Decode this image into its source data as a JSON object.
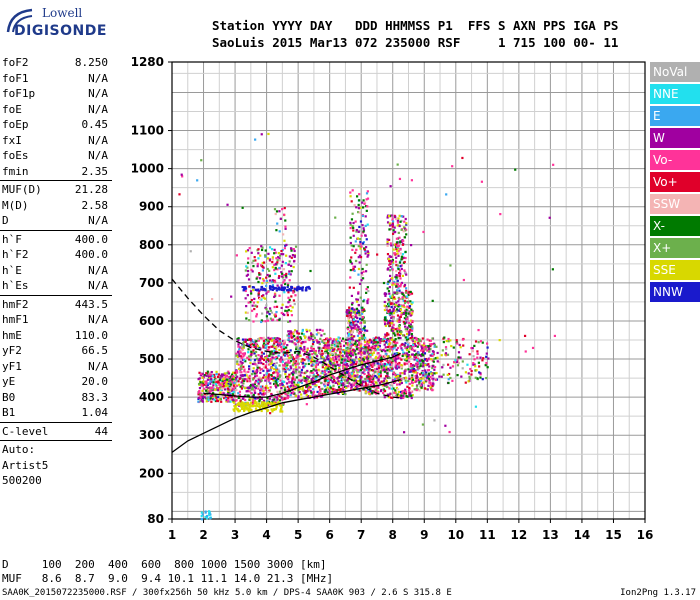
{
  "logo": {
    "line1": "Lowell",
    "line2": "DIGISONDE"
  },
  "header": {
    "line1": "Station YYYY DAY   DDD HHMMSS P1  FFS S AXN PPS IGA PS",
    "line2": "SaoLuis 2015 Mar13 072 235000 RSF     1 715 100 00- 11"
  },
  "params": {
    "group1": [
      {
        "name": "foF2",
        "value": "8.250"
      },
      {
        "name": "foF1",
        "value": "N/A"
      },
      {
        "name": "foF1p",
        "value": "N/A"
      },
      {
        "name": "foE",
        "value": "N/A"
      },
      {
        "name": "foEp",
        "value": "0.45"
      },
      {
        "name": "fxI",
        "value": "N/A"
      },
      {
        "name": "foEs",
        "value": "N/A"
      },
      {
        "name": "fmin",
        "value": "2.35"
      }
    ],
    "group2": [
      {
        "name": "MUF(D)",
        "value": "21.28"
      },
      {
        "name": "M(D)",
        "value": "2.58"
      },
      {
        "name": "D",
        "value": "N/A"
      }
    ],
    "group3": [
      {
        "name": "h`F",
        "value": "400.0"
      },
      {
        "name": "h`F2",
        "value": "400.0"
      },
      {
        "name": "h`E",
        "value": "N/A"
      },
      {
        "name": "h`Es",
        "value": "N/A"
      }
    ],
    "group4": [
      {
        "name": "hmF2",
        "value": "443.5"
      },
      {
        "name": "hmF1",
        "value": "N/A"
      },
      {
        "name": "hmE",
        "value": "110.0"
      },
      {
        "name": "yF2",
        "value": "66.5"
      },
      {
        "name": "yF1",
        "value": "N/A"
      },
      {
        "name": "yE",
        "value": "20.0"
      },
      {
        "name": "B0",
        "value": "83.3"
      },
      {
        "name": "B1",
        "value": "1.04"
      }
    ],
    "group5": [
      {
        "name": "C-level",
        "value": "44"
      }
    ],
    "auto_lines": [
      "Auto:",
      "Artist5",
      "500200"
    ]
  },
  "legend": [
    {
      "label": "NoVal",
      "color": "#b0b0b0"
    },
    {
      "label": "NNE",
      "color": "#22e0ee"
    },
    {
      "label": "E",
      "color": "#3aa8f0"
    },
    {
      "label": "W",
      "color": "#a000a0"
    },
    {
      "label": "Vo-",
      "color": "#ff3399"
    },
    {
      "label": "Vo+",
      "color": "#e0002a"
    },
    {
      "label": "SSW",
      "color": "#f4b4b4"
    },
    {
      "label": "X-",
      "color": "#007a00"
    },
    {
      "label": "X+",
      "color": "#6cb04c"
    },
    {
      "label": "SSE",
      "color": "#d8d800"
    },
    {
      "label": "NNW",
      "color": "#1a1acc"
    }
  ],
  "dmuf": {
    "line1": "D     100  200  400  600  800 1000 1500 3000 [km]",
    "line2": "MUF   8.6  8.7  9.0  9.4 10.1 11.1 14.0 21.3 [MHz]"
  },
  "footer": {
    "left": "SAA0K_2015072235000.RSF / 300fx256h 50 kHz 5.0 km / DPS-4 SAA0K 903 / 2.6 S 315.8 E",
    "right": "Ion2Png 1.3.17"
  },
  "chart_data": {
    "type": "scatter",
    "xlim": [
      1,
      16
    ],
    "ylim": [
      80,
      1280
    ],
    "x_ticks": [
      1,
      2,
      3,
      4,
      5,
      6,
      7,
      8,
      9,
      10,
      11,
      12,
      13,
      14,
      15,
      16
    ],
    "y_ticks": [
      80,
      200,
      300,
      400,
      500,
      600,
      700,
      800,
      900,
      1000,
      1100,
      1280
    ],
    "grid": true,
    "legend_position": "right",
    "curves": [
      {
        "style": "solid",
        "x": [
          1,
          1.5,
          2,
          2.5,
          3,
          3.5,
          4,
          4.5,
          5,
          5.5,
          6,
          6.5,
          7,
          7.5,
          8,
          8.25
        ],
        "y": [
          255,
          285,
          305,
          325,
          345,
          360,
          372,
          385,
          393,
          400,
          408,
          415,
          423,
          430,
          440,
          446
        ]
      },
      {
        "style": "solid",
        "x": [
          2,
          2.5,
          3,
          3.5,
          4,
          4.5,
          5,
          5.5,
          6,
          6.5,
          7,
          7.5,
          8,
          8.25
        ],
        "y": [
          410,
          407,
          403,
          400,
          400,
          410,
          425,
          440,
          458,
          472,
          485,
          495,
          505,
          515
        ]
      },
      {
        "style": "dashed",
        "x": [
          1,
          1.5,
          2,
          2.5,
          3,
          3.5,
          4,
          4.5,
          5,
          5.5,
          6,
          6.5,
          7,
          7.5,
          8,
          8.25
        ],
        "y": [
          710,
          660,
          615,
          575,
          548,
          530,
          520,
          515,
          520,
          505,
          480,
          455,
          430,
          410,
          400,
          398
        ]
      }
    ]
  }
}
